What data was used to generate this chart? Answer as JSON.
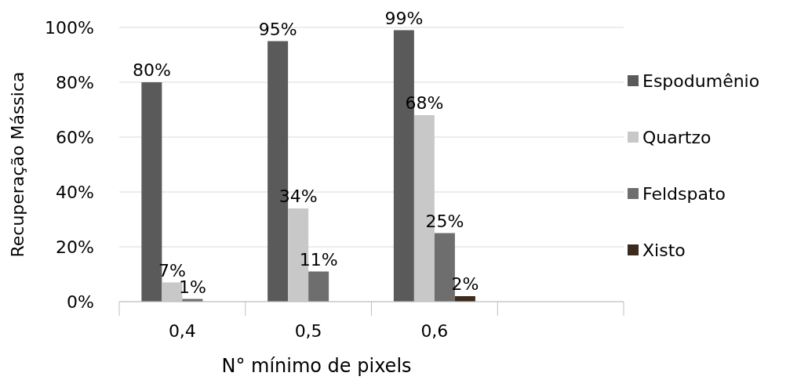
{
  "chart_data": {
    "type": "bar",
    "xlabel": "N° mínimo de pixels",
    "ylabel": "Recuperação Mássica",
    "categories": [
      "0,4",
      "0,5",
      "0,6",
      null
    ],
    "series": [
      {
        "name": "Espodumênio",
        "color": "#5a5a5a",
        "values": [
          80,
          95,
          99,
          null
        ],
        "value_labels": [
          "80%",
          "95%",
          "99%",
          null
        ]
      },
      {
        "name": "Quartzo",
        "color": "#c8c8c8",
        "values": [
          7,
          34,
          68,
          null
        ],
        "value_labels": [
          "7%",
          "34%",
          "68%",
          null
        ]
      },
      {
        "name": "Feldspato",
        "color": "#6e6e6e",
        "values": [
          1,
          11,
          25,
          null
        ],
        "value_labels": [
          "1%",
          "11%",
          "25%",
          null
        ]
      },
      {
        "name": "Xisto",
        "color": "#3b2a1e",
        "values": [
          null,
          null,
          2,
          null
        ],
        "value_labels": [
          null,
          null,
          "2%",
          null
        ]
      }
    ],
    "ylim": [
      0,
      100
    ],
    "yticks": [
      {
        "value": 0,
        "label": "0%"
      },
      {
        "value": 20,
        "label": "20%"
      },
      {
        "value": 40,
        "label": "40%"
      },
      {
        "value": 60,
        "label": "60%"
      },
      {
        "value": 80,
        "label": "80%"
      },
      {
        "value": 100,
        "label": "100%"
      }
    ],
    "grid": "y",
    "legend": "right"
  }
}
